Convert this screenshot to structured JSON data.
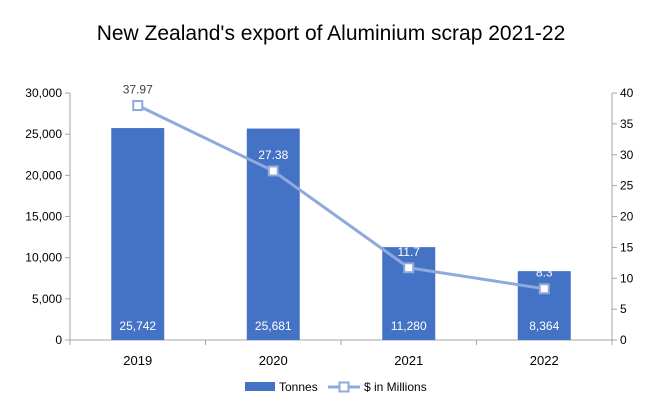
{
  "chart_data": {
    "type": "bar",
    "title": "New Zealand's export of Aluminium scrap 2021-22",
    "categories": [
      "2019",
      "2020",
      "2021",
      "2022"
    ],
    "series": [
      {
        "name": "Tonnes",
        "type": "bar",
        "axis": "left",
        "values": [
          25742,
          25681,
          11280,
          8364
        ],
        "labels": [
          "25,742",
          "25,681",
          "11,280",
          "8,364"
        ],
        "color": "#4472C4"
      },
      {
        "name": "$ in Millions",
        "type": "line",
        "axis": "right",
        "values": [
          37.97,
          27.38,
          11.7,
          8.3
        ],
        "labels": [
          "37.97",
          "27.38",
          "11.7",
          "8.3"
        ],
        "color": "#8EA9DB"
      }
    ],
    "y_left": {
      "min": 0,
      "max": 30000,
      "ticks": [
        0,
        5000,
        10000,
        15000,
        20000,
        25000,
        30000
      ],
      "tick_labels": [
        "0",
        "5,000",
        "10,000",
        "15,000",
        "20,000",
        "25,000",
        "30,000"
      ]
    },
    "y_right": {
      "min": 0,
      "max": 40,
      "ticks": [
        0,
        5,
        10,
        15,
        20,
        25,
        30,
        35,
        40
      ],
      "tick_labels": [
        "0",
        "5",
        "10",
        "15",
        "20",
        "25",
        "30",
        "35",
        "40"
      ]
    },
    "xlabel": "",
    "grid": false,
    "legend": "bottom"
  }
}
